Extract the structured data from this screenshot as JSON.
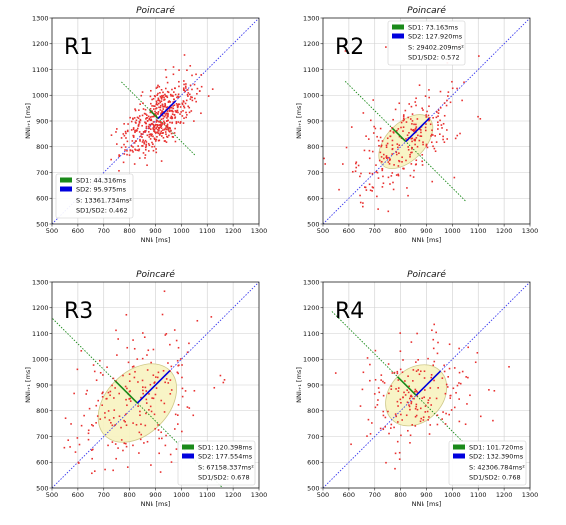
{
  "chart_data": [
    {
      "type": "scatter",
      "panel_label": "R1",
      "title": "Poincaré",
      "xlabel": "NNIᵢ [ms]",
      "ylabel": "NNIᵢ₊₁ [ms]",
      "xlim": [
        500,
        1300
      ],
      "ylim": [
        500,
        1300
      ],
      "ticks": [
        500,
        600,
        700,
        800,
        900,
        1000,
        1100,
        1200,
        1300
      ],
      "grid": true,
      "legend_position": "lower-left",
      "mean": [
        910,
        910
      ],
      "n_points": 520,
      "sd1": 44.316,
      "sd2": 95.975,
      "legend": [
        "SD1: 44.316ms",
        "SD2: 95.975ms",
        "S: 13361.734ms²",
        "SD1/SD2: 0.462"
      ]
    },
    {
      "type": "scatter",
      "panel_label": "R2",
      "title": "Poincaré",
      "xlabel": "NNIᵢ [ms]",
      "ylabel": "NNIᵢ₊₁ [ms]",
      "xlim": [
        500,
        1300
      ],
      "ylim": [
        500,
        1300
      ],
      "ticks": [
        500,
        600,
        700,
        800,
        900,
        1000,
        1100,
        1200,
        1300
      ],
      "grid": true,
      "legend_position": "upper-center",
      "mean": [
        820,
        820
      ],
      "n_points": 280,
      "sd1": 73.163,
      "sd2": 127.92,
      "legend": [
        "SD1: 73.163ms",
        "SD2: 127.920ms",
        "S: 29402.209ms²",
        "SD1/SD2: 0.572"
      ]
    },
    {
      "type": "scatter",
      "panel_label": "R3",
      "title": "Poincaré",
      "xlabel": "NNIᵢ [ms]",
      "ylabel": "NNIᵢ₊₁ [ms]",
      "xlim": [
        500,
        1300
      ],
      "ylim": [
        500,
        1300
      ],
      "ticks": [
        500,
        600,
        700,
        800,
        900,
        1000,
        1100,
        1200,
        1300
      ],
      "grid": true,
      "legend_position": "lower-right",
      "mean": [
        830,
        830
      ],
      "n_points": 230,
      "sd1": 120.398,
      "sd2": 177.554,
      "legend": [
        "SD1: 120.398ms",
        "SD2: 177.554ms",
        "S: 67158.337ms²",
        "SD1/SD2: 0.678"
      ]
    },
    {
      "type": "scatter",
      "panel_label": "R4",
      "title": "Poincaré",
      "xlabel": "NNIᵢ [ms]",
      "ylabel": "NNIᵢ₊₁ [ms]",
      "xlim": [
        500,
        1300
      ],
      "ylim": [
        500,
        1300
      ],
      "ticks": [
        500,
        600,
        700,
        800,
        900,
        1000,
        1100,
        1200,
        1300
      ],
      "grid": true,
      "legend_position": "lower-right",
      "mean": [
        860,
        860
      ],
      "n_points": 200,
      "sd1": 101.72,
      "sd2": 132.39,
      "legend": [
        "SD1: 101.720ms",
        "SD2: 132.390ms",
        "S: 42306.784ms²",
        "SD1/SD2: 0.768"
      ]
    }
  ],
  "colors": {
    "points": "#e8302f",
    "identity_line": "#3a3aee",
    "sd1": "#1a8a1a",
    "sd2": "#0000dd",
    "ellipse_fill": "#f7f3c0",
    "ellipse_edge": "#cfc98a",
    "grid": "#cfcfcf",
    "axes": "#222222"
  }
}
